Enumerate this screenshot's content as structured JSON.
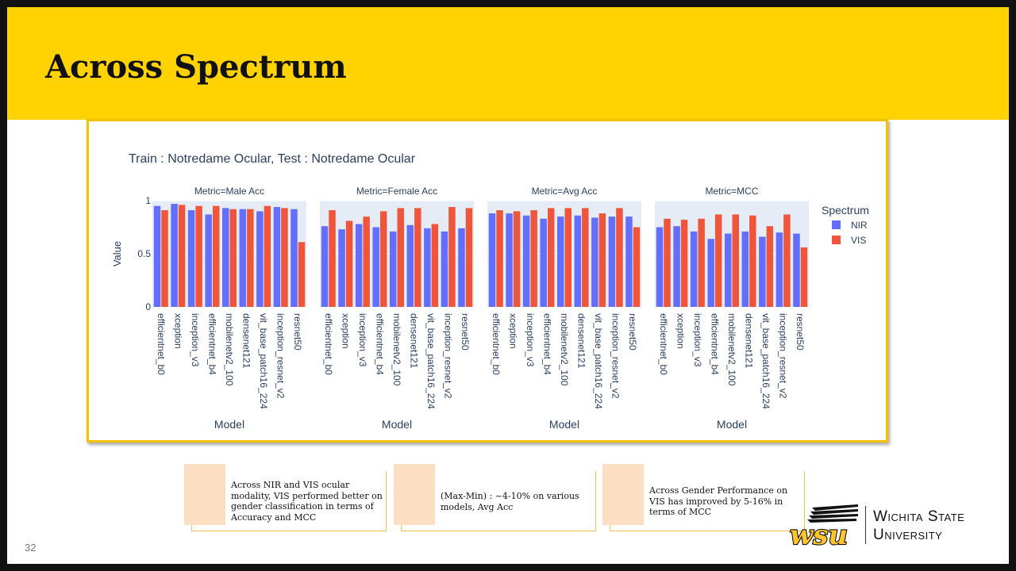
{
  "slide": {
    "title": "Across Spectrum",
    "page_number": "32",
    "colors": {
      "banner": "#FFD200",
      "frame": "#F2C100",
      "accent_box": "#FCDFC3"
    }
  },
  "chart_data": {
    "type": "bar",
    "title": "Train : Notredame Ocular, Test : Notredame Ocular",
    "ylabel": "Value",
    "xlabel": "Model",
    "ylim": [
      0,
      1
    ],
    "yticks": [
      "0",
      "0.5",
      "1"
    ],
    "legend": {
      "title": "Spectrum",
      "placement": "right"
    },
    "series_names": [
      "NIR",
      "VIS"
    ],
    "series_colors": [
      "#636EFA",
      "#EF553B"
    ],
    "categories": [
      "efficientnet_b0",
      "xception",
      "inception_v3",
      "efficientnet_b4",
      "mobilenetv2_100",
      "densenet121",
      "vit_base_patch16_224",
      "inception_resnet_v2",
      "resnet50"
    ],
    "panels": [
      {
        "title": "Metric=Male Acc",
        "NIR": [
          0.95,
          0.97,
          0.91,
          0.87,
          0.93,
          0.92,
          0.9,
          0.94,
          0.92
        ],
        "VIS": [
          0.91,
          0.96,
          0.95,
          0.95,
          0.92,
          0.92,
          0.95,
          0.93,
          0.61
        ]
      },
      {
        "title": "Metric=Female Acc",
        "NIR": [
          0.76,
          0.73,
          0.78,
          0.75,
          0.71,
          0.77,
          0.74,
          0.71,
          0.74
        ],
        "VIS": [
          0.91,
          0.81,
          0.85,
          0.9,
          0.93,
          0.93,
          0.78,
          0.94,
          0.93
        ]
      },
      {
        "title": "Metric=Avg Acc",
        "NIR": [
          0.88,
          0.88,
          0.86,
          0.83,
          0.85,
          0.86,
          0.84,
          0.85,
          0.85
        ],
        "VIS": [
          0.91,
          0.9,
          0.91,
          0.93,
          0.93,
          0.93,
          0.88,
          0.93,
          0.75
        ]
      },
      {
        "title": "Metric=MCC",
        "NIR": [
          0.75,
          0.76,
          0.71,
          0.64,
          0.69,
          0.71,
          0.66,
          0.7,
          0.69
        ],
        "VIS": [
          0.83,
          0.82,
          0.83,
          0.87,
          0.87,
          0.86,
          0.76,
          0.87,
          0.56
        ]
      }
    ]
  },
  "notes": [
    {
      "text": "Across NIR and VIS ocular modality, VIS performed better on gender classification in terms of Accuracy and MCC"
    },
    {
      "text": "(Max-Min) : ~4-10% on various models, Avg Acc"
    },
    {
      "text": "Across Gender Performance on VIS has improved by 5-16% in terms of MCC"
    }
  ],
  "logo": {
    "mark": "wsu",
    "name_line1": "Wichita State",
    "name_line2": "University"
  }
}
